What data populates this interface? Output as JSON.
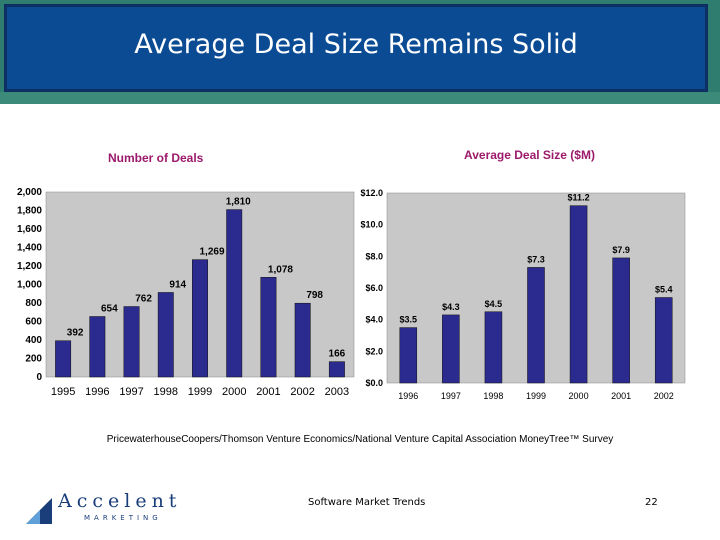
{
  "slide": {
    "title": "Average Deal Size Remains Solid",
    "source": "PricewaterhouseCoopers/Thomson Venture Economics/National Venture Capital Association MoneyTree™ Survey",
    "footer_center": "Software Market Trends",
    "page_number": "22",
    "logo": {
      "name": "Accelent",
      "tagline": "MARKETING"
    }
  },
  "colors": {
    "title_bg": "#0a4b93",
    "band": "#2e7d6e",
    "bar": "#2a2a8f",
    "plot_bg": "#c8c8c8",
    "label": "#9c1a6b"
  },
  "chart_data": [
    {
      "type": "bar",
      "title": "Number of Deals",
      "categories": [
        "1995",
        "1996",
        "1997",
        "1998",
        "1999",
        "2000",
        "2001",
        "2002",
        "2003"
      ],
      "values": [
        392,
        654,
        762,
        914,
        1269,
        1810,
        1078,
        798,
        166
      ],
      "value_labels": [
        "392",
        "654",
        "762",
        "914",
        "1,269",
        "1,810",
        "1,078",
        "798",
        "166"
      ],
      "ylim": [
        0,
        2000
      ],
      "yticks": [
        "0",
        "200",
        "400",
        "600",
        "800",
        "1,000",
        "1,200",
        "1,400",
        "1,600",
        "1,800",
        "2,000"
      ],
      "grid": false
    },
    {
      "type": "bar",
      "title": "Average Deal Size  ($M)",
      "categories": [
        "1996",
        "1997",
        "1998",
        "1999",
        "2000",
        "2001",
        "2002"
      ],
      "values": [
        3.5,
        4.3,
        4.5,
        7.3,
        11.2,
        7.9,
        5.4
      ],
      "value_labels": [
        "$3.5",
        "$4.3",
        "$4.5",
        "$7.3",
        "$11.2",
        "$7.9",
        "$5.4"
      ],
      "ylim": [
        0,
        12
      ],
      "yticks": [
        "$0.0",
        "$2.0",
        "$4.0",
        "$6.0",
        "$8.0",
        "$10.0",
        "$12.0"
      ],
      "grid": false
    }
  ]
}
